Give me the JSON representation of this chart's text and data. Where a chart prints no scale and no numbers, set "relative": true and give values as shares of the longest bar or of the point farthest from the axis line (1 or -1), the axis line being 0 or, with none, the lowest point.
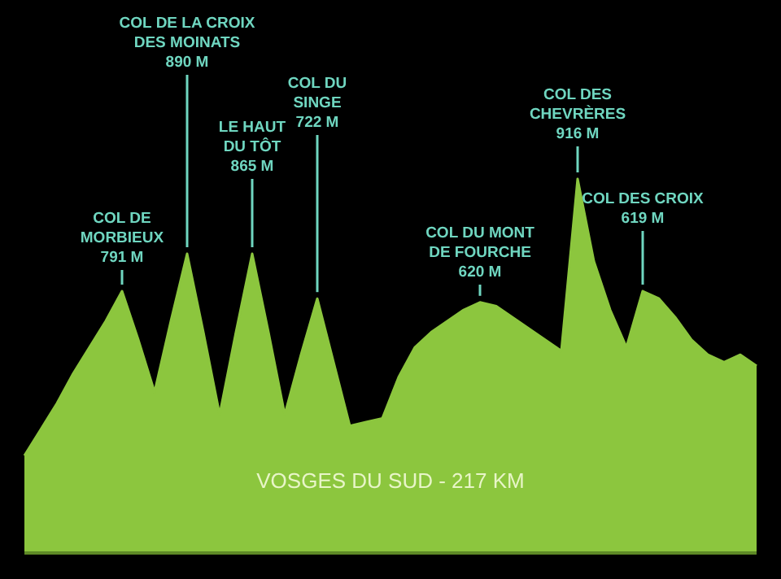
{
  "chart_data": {
    "type": "area",
    "relative": true,
    "xlabel": "VOSGES DU SUD - 217 KM",
    "color": "#8cc63e",
    "tick_labels": false,
    "categories": [
      null,
      null,
      null,
      null,
      null,
      null,
      null,
      null,
      null,
      null,
      null,
      null,
      null,
      null,
      null,
      null,
      null,
      null,
      null,
      null,
      null,
      null,
      null,
      null,
      null,
      null,
      null,
      null,
      null,
      null,
      null,
      null,
      null,
      null,
      null,
      null,
      null,
      null,
      null,
      null,
      null,
      null,
      null,
      null,
      null,
      null
    ],
    "values": [
      0.26,
      0.33,
      0.4,
      0.48,
      0.55,
      0.62,
      0.7,
      0.57,
      0.43,
      0.62,
      0.8,
      0.59,
      0.37,
      0.59,
      0.8,
      0.59,
      0.37,
      0.53,
      0.68,
      0.51,
      0.34,
      0.35,
      0.36,
      0.47,
      0.55,
      0.59,
      0.62,
      0.65,
      0.67,
      0.66,
      0.63,
      0.6,
      0.57,
      0.54,
      1,
      0.78,
      0.65,
      0.55,
      0.7,
      0.68,
      0.63,
      0.57,
      0.53,
      0.51,
      0.53,
      0.5
    ],
    "annotations": [
      "COL DE\nMORBIEUX\n791 M",
      "COL DE  LA CROIX\nDES MOINATS\n890 M",
      "LE HAUT\nDU TÔT\n865 M",
      "COL DU\nSINGE\n722 M",
      "COL DU MONT\nDE FOURCHE\n620 M",
      "COL DES\nCHEVRÈRES\n916 M",
      "COL DES CROIX\n619 M"
    ]
  }
}
